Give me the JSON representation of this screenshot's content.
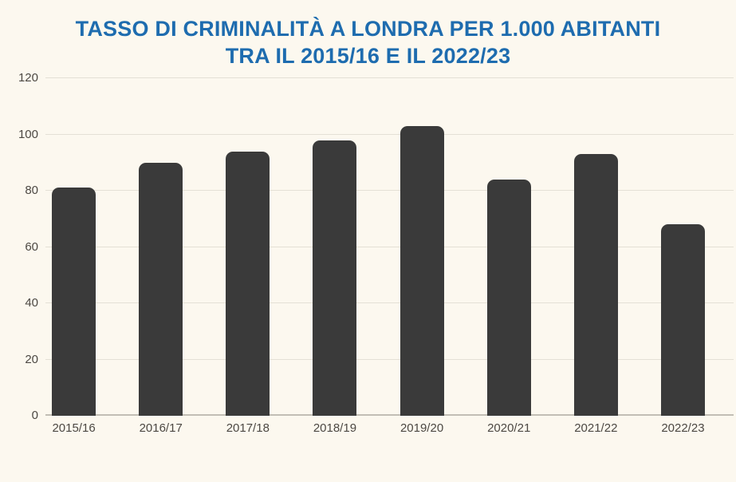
{
  "title": {
    "line1": "TASSO DI CRIMINALITÀ A LONDRA PER 1.000 ABITANTI",
    "line2": "TRA IL 2015/16 E IL 2022/23"
  },
  "chart_data": {
    "type": "bar",
    "title": "TASSO DI CRIMINALITÀ A LONDRA PER 1.000 ABITANTI TRA IL 2015/16 E IL 2022/23",
    "categories": [
      "2015/16",
      "2016/17",
      "2017/18",
      "2018/19",
      "2019/20",
      "2020/21",
      "2021/22",
      "2022/23"
    ],
    "values": [
      81,
      90,
      94,
      98,
      103,
      84,
      93,
      68
    ],
    "xlabel": "",
    "ylabel": "",
    "ylim": [
      0,
      120
    ],
    "yticks": [
      0,
      20,
      40,
      60,
      80,
      100,
      120
    ],
    "grid": true,
    "legend": false,
    "colors": {
      "bg": "#FCF8EF",
      "bar": "#3A3A3A",
      "grid": "#E4E0D6",
      "axis": "#C2BEB5",
      "title": "#1E6CAF",
      "tick": "#4C4843"
    }
  }
}
